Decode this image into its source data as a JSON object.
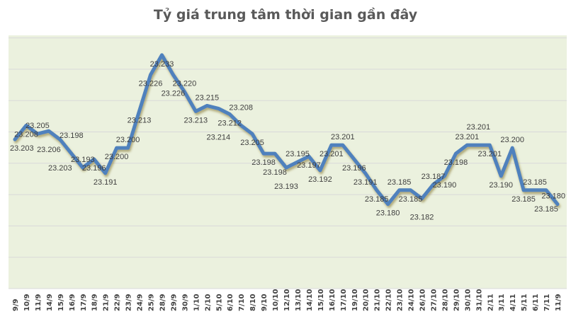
{
  "chart_data": {
    "type": "line",
    "title": "Tỷ giá trung tâm thời gian gần đây",
    "xlabel": "",
    "ylabel": "",
    "ylim": [
      23.15,
      23.24
    ],
    "grid": true,
    "legend": "none",
    "colors": {
      "line": "#4F81BD",
      "plot_bg": "#EBF1DE",
      "grid": "#D9D9D9",
      "title": "#595959",
      "label": "#404040"
    },
    "categories": [
      "9/9",
      "10/9",
      "11/9",
      "14/9",
      "15/9",
      "16/9",
      "17/9",
      "18/9",
      "21/9",
      "22/9",
      "23/9",
      "24/9",
      "25/9",
      "28/9",
      "29/9",
      "30/9",
      "1/10",
      "2/10",
      "5/10",
      "6/10",
      "7/10",
      "8/10",
      "9/10",
      "10/10",
      "12/10",
      "13/10",
      "14/10",
      "15/10",
      "16/10",
      "17/10",
      "19/10",
      "20/10",
      "21/10",
      "22/10",
      "23/10",
      "24/10",
      "26/10",
      "27/10",
      "28/10",
      "29/10",
      "30/10",
      "31/10",
      "2/11",
      "3/11",
      "4/11",
      "5/11",
      "6/11",
      "7/11",
      "11/9"
    ],
    "values": [
      23.203,
      23.208,
      23.205,
      23.206,
      23.203,
      23.198,
      23.193,
      23.196,
      23.191,
      23.2,
      23.2,
      23.213,
      23.226,
      23.233,
      23.226,
      23.22,
      23.213,
      23.215,
      23.214,
      23.212,
      23.208,
      23.205,
      23.198,
      23.198,
      23.193,
      23.195,
      23.197,
      23.192,
      23.201,
      23.201,
      23.196,
      23.191,
      23.185,
      23.18,
      23.185,
      23.185,
      23.182,
      23.187,
      23.19,
      23.198,
      23.201,
      23.201,
      23.201,
      23.19,
      23.2,
      23.185,
      23.185,
      23.185,
      23.18
    ]
  }
}
